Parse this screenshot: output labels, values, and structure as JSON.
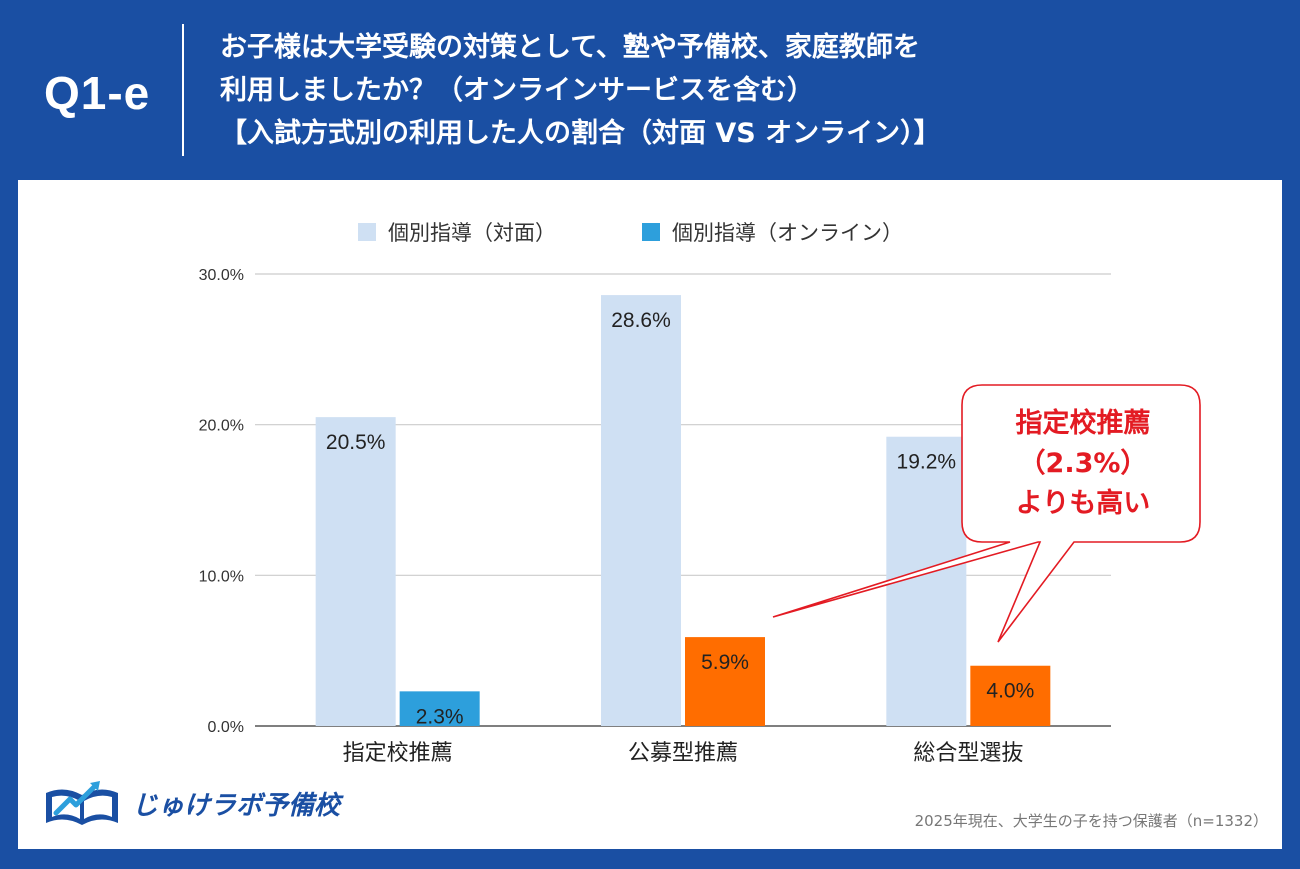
{
  "header": {
    "question_id": "Q1-e",
    "title_line1": "お子様は大学受験の対策として、塾や予備校、家庭教師を",
    "title_line2": "利用しましたか？（オンラインサービスを含む）",
    "title_line3": "【入試方式別の利用した人の割合（対面 VS オンライン）】"
  },
  "colors": {
    "background": "#1a4fa3",
    "series_face_to_face": "#cfe0f3",
    "series_online_blue": "#2d9fdc",
    "series_online_orange": "#ff6d00",
    "callout": "#e31b23"
  },
  "chart_data": {
    "type": "bar",
    "categories": [
      "指定校推薦",
      "公募型推薦",
      "総合型選抜"
    ],
    "series": [
      {
        "name": "個別指導（対面）",
        "values": [
          20.5,
          28.6,
          19.2
        ],
        "labels": [
          "20.5%",
          "28.6%",
          "19.2%"
        ]
      },
      {
        "name": "個別指導（オンライン）",
        "values": [
          2.3,
          5.9,
          4.0
        ],
        "labels": [
          "2.3%",
          "5.9%",
          "4.0%"
        ]
      }
    ],
    "online_bar_colors": [
      "#2d9fdc",
      "#ff6d00",
      "#ff6d00"
    ],
    "yticks": [
      0,
      10,
      20,
      30
    ],
    "ytick_labels": [
      "0.0%",
      "10.0%",
      "20.0%",
      "30.0%"
    ],
    "ylim": [
      0,
      30
    ],
    "grid": true,
    "legend_position": "top",
    "title": "",
    "xlabel": "",
    "ylabel": ""
  },
  "callout": {
    "line1": "指定校推薦",
    "line2": "（2.3%）",
    "line3": "よりも高い"
  },
  "logo": {
    "text": "じゅけラボ予備校"
  },
  "footer": {
    "source": "2025年現在、大学生の子を持つ保護者（n=1332）"
  }
}
